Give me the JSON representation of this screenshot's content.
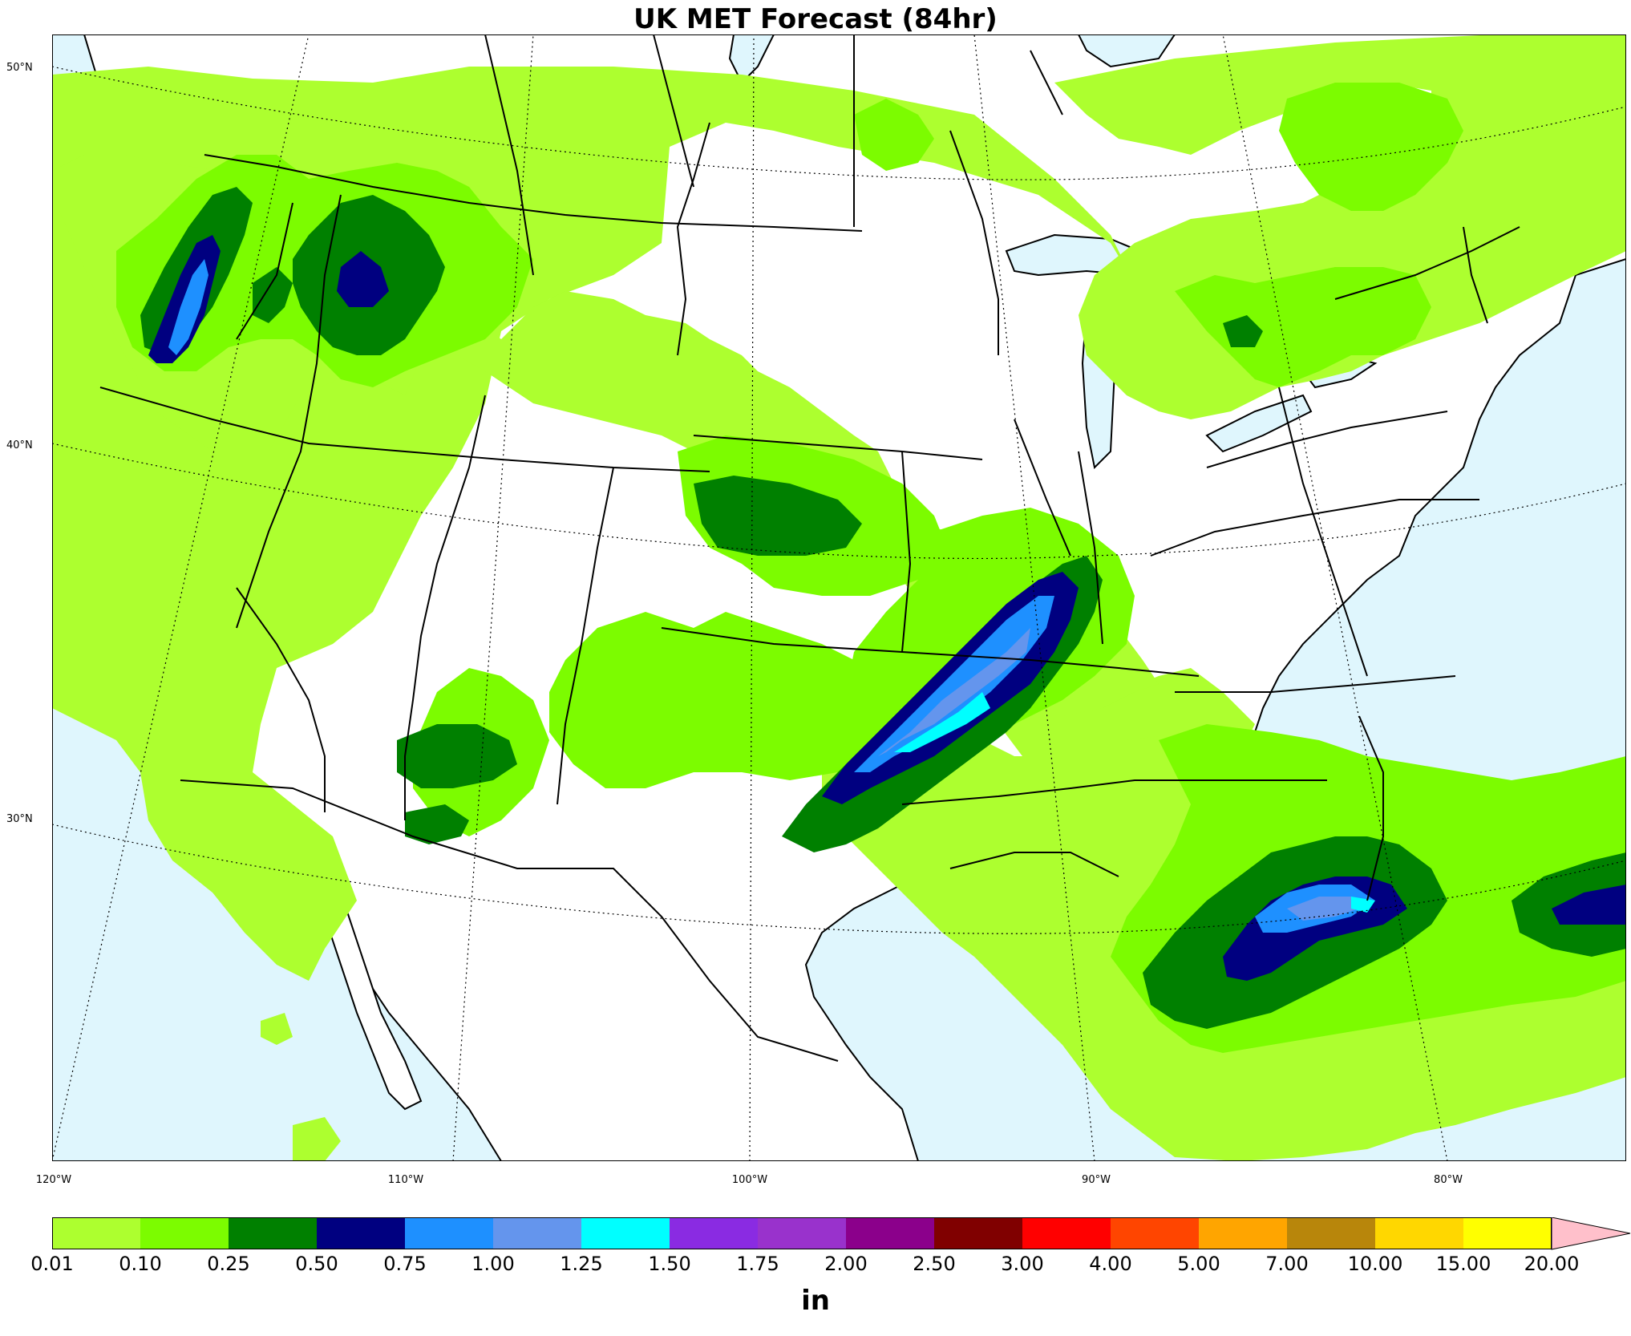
{
  "title": "UK MET Forecast (84hr)",
  "lat_labels": [
    {
      "name": "lat-50",
      "text": "50°N",
      "lat": 50
    },
    {
      "name": "lat-40",
      "text": "40°N",
      "lat": 40
    },
    {
      "name": "lat-30",
      "text": "30°N",
      "lat": 30
    }
  ],
  "lon_labels": [
    {
      "name": "lon-120",
      "text": "120°W",
      "lon": -120
    },
    {
      "name": "lon-110",
      "text": "110°W",
      "lon": -110
    },
    {
      "name": "lon-100",
      "text": "100°W",
      "lon": -100
    },
    {
      "name": "lon-90",
      "text": "90°W",
      "lon": -90
    },
    {
      "name": "lon-80",
      "text": "80°W",
      "lon": -80
    }
  ],
  "colorbar": {
    "units": "in",
    "levels": [
      "0.01",
      "0.10",
      "0.25",
      "0.50",
      "0.75",
      "1.00",
      "1.25",
      "1.50",
      "1.75",
      "2.00",
      "2.50",
      "3.00",
      "4.00",
      "5.00",
      "7.00",
      "10.00",
      "15.00",
      "20.00"
    ],
    "colors": [
      "#adff2f",
      "#7cfc00",
      "#008000",
      "#000080",
      "#1e90ff",
      "#6495ed",
      "#00ffff",
      "#8a2be2",
      "#9932cc",
      "#8b008b",
      "#800000",
      "#ff0000",
      "#ff4500",
      "#ffa500",
      "#b8860b",
      "#ffd700",
      "#ffff00"
    ],
    "extend_color": "#ffc0cb"
  },
  "colors": {
    "ocean": "#dff6fd",
    "land": "#ffffff"
  }
}
